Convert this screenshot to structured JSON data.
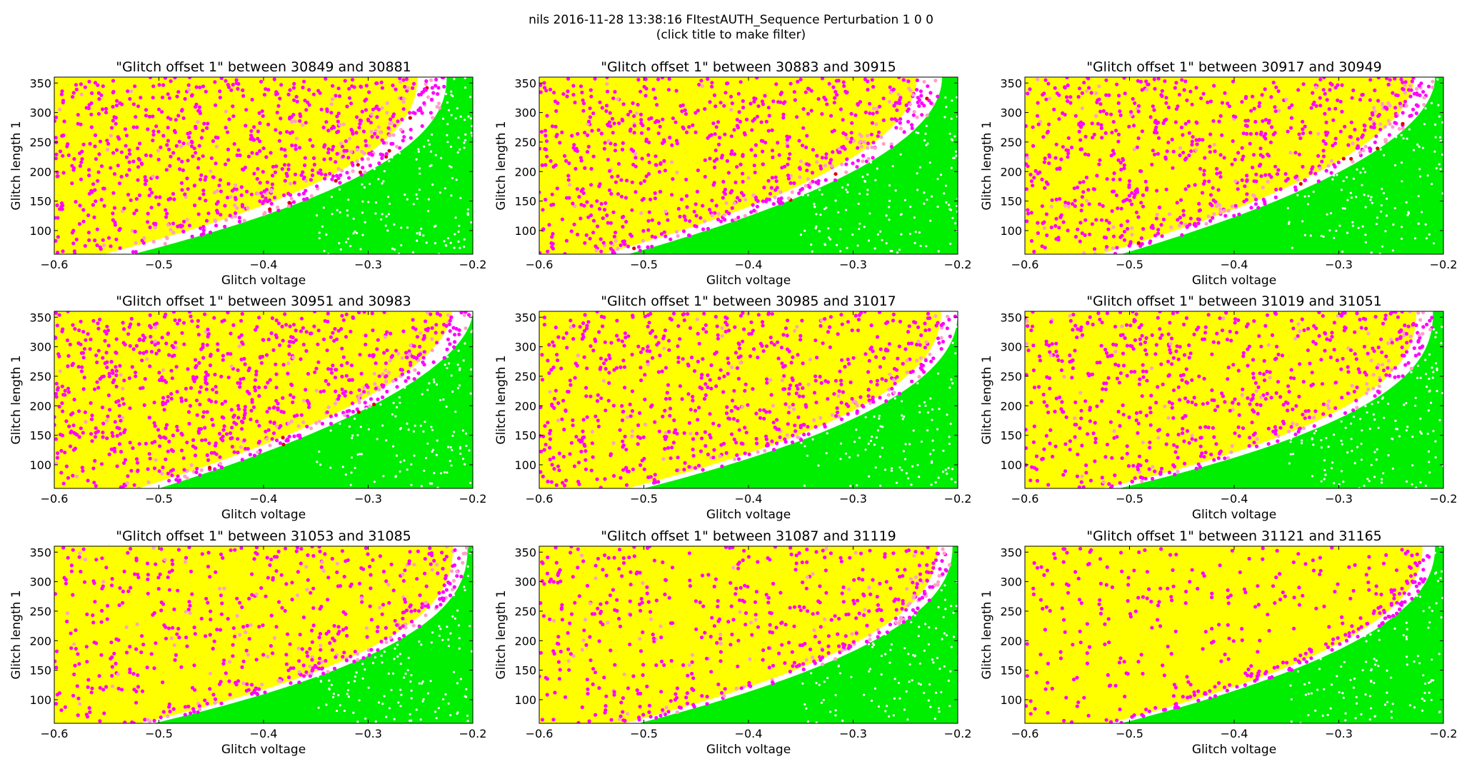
{
  "figure": {
    "title_line1": "nils 2016-11-28 13:38:16 FItestAUTH_Sequence Perturbation 1 0 0",
    "title_line2": "(click title to make filter)"
  },
  "colors": {
    "green": "#00ee00",
    "yellow": "#ffff00",
    "magenta": "#ff00ff",
    "pink": "#ffa0c8",
    "red": "#dd0000",
    "white": "#ffffff"
  },
  "chart_data": [
    {
      "type": "scatter",
      "title": "\"Glitch offset 1\" between 30849 and 30881",
      "xlabel": "Glitch voltage",
      "ylabel": "Glitch length 1",
      "xlim": [
        -0.6,
        -0.2
      ],
      "ylim": [
        60,
        360
      ],
      "xticks": [
        "-0.6",
        "-0.5",
        "-0.4",
        "-0.3",
        "-0.2"
      ],
      "yticks": [
        "100",
        "150",
        "200",
        "250",
        "300",
        "350"
      ],
      "boundary": {
        "a": 0.3,
        "p": 2.2,
        "x0": -0.225,
        "band": 0.07
      },
      "magenta_density": 0.55,
      "pink": true,
      "red": true
    },
    {
      "type": "scatter",
      "title": "\"Glitch offset 1\" between 30883 and 30915",
      "xlabel": "Glitch voltage",
      "ylabel": "Glitch length 1",
      "xlim": [
        -0.6,
        -0.2
      ],
      "ylim": [
        60,
        360
      ],
      "xticks": [
        "-0.6",
        "-0.5",
        "-0.4",
        "-0.3",
        "-0.2"
      ],
      "yticks": [
        "100",
        "150",
        "200",
        "250",
        "300",
        "350"
      ],
      "boundary": {
        "a": 0.3,
        "p": 2.0,
        "x0": -0.215,
        "band": 0.06
      },
      "magenta_density": 0.5,
      "pink": true,
      "red": true
    },
    {
      "type": "scatter",
      "title": "\"Glitch offset 1\" between 30917 and 30949",
      "xlabel": "Glitch voltage",
      "ylabel": "Glitch length 1",
      "xlim": [
        -0.6,
        -0.2
      ],
      "ylim": [
        60,
        360
      ],
      "xticks": [
        "-0.6",
        "-0.5",
        "-0.4",
        "-0.3",
        "-0.2"
      ],
      "yticks": [
        "100",
        "150",
        "200",
        "250",
        "300",
        "350"
      ],
      "boundary": {
        "a": 0.3,
        "p": 1.9,
        "x0": -0.208,
        "band": 0.05
      },
      "magenta_density": 0.48,
      "pink": true,
      "red": true
    },
    {
      "type": "scatter",
      "title": "\"Glitch offset 1\" between 30951 and 30983",
      "xlabel": "Glitch voltage",
      "ylabel": "Glitch length 1",
      "xlim": [
        -0.6,
        -0.2
      ],
      "ylim": [
        60,
        360
      ],
      "xticks": [
        "-0.6",
        "-0.5",
        "-0.4",
        "-0.3",
        "-0.2"
      ],
      "yticks": [
        "100",
        "150",
        "200",
        "250",
        "300",
        "350"
      ],
      "boundary": {
        "a": 0.3,
        "p": 1.8,
        "x0": -0.2,
        "band": 0.05
      },
      "magenta_density": 0.55,
      "pink": true,
      "red": true
    },
    {
      "type": "scatter",
      "title": "\"Glitch offset 1\" between 30985 and 31017",
      "xlabel": "Glitch voltage",
      "ylabel": "Glitch length 1",
      "xlim": [
        -0.6,
        -0.2
      ],
      "ylim": [
        60,
        360
      ],
      "xticks": [
        "-0.6",
        "-0.5",
        "-0.4",
        "-0.3",
        "-0.2"
      ],
      "yticks": [
        "100",
        "150",
        "200",
        "250",
        "300",
        "350"
      ],
      "boundary": {
        "a": 0.3,
        "p": 2.2,
        "x0": -0.2,
        "band": 0.04
      },
      "magenta_density": 0.42,
      "pink": true,
      "red": false
    },
    {
      "type": "scatter",
      "title": "\"Glitch offset 1\" between 31019 and 31051",
      "xlabel": "Glitch voltage",
      "ylabel": "Glitch length 1",
      "xlim": [
        -0.6,
        -0.2
      ],
      "ylim": [
        60,
        360
      ],
      "xticks": [
        "-0.6",
        "-0.5",
        "-0.4",
        "-0.3",
        "-0.2"
      ],
      "yticks": [
        "100",
        "150",
        "200",
        "250",
        "300",
        "350"
      ],
      "boundary": {
        "a": 0.3,
        "p": 2.4,
        "x0": -0.21,
        "band": 0.04
      },
      "magenta_density": 0.4,
      "pink": true,
      "red": false
    },
    {
      "type": "scatter",
      "title": "\"Glitch offset 1\" between 31053 and 31085",
      "xlabel": "Glitch voltage",
      "ylabel": "Glitch length 1",
      "xlim": [
        -0.6,
        -0.2
      ],
      "ylim": [
        60,
        360
      ],
      "xticks": [
        "-0.6",
        "-0.5",
        "-0.4",
        "-0.3",
        "-0.2"
      ],
      "yticks": [
        "100",
        "150",
        "200",
        "250",
        "300",
        "350"
      ],
      "boundary": {
        "a": 0.3,
        "p": 2.4,
        "x0": -0.205,
        "band": 0.035
      },
      "magenta_density": 0.3,
      "pink": true,
      "red": false
    },
    {
      "type": "scatter",
      "title": "\"Glitch offset 1\" between 31087 and 31119",
      "xlabel": "Glitch voltage",
      "ylabel": "Glitch length 1",
      "xlim": [
        -0.6,
        -0.2
      ],
      "ylim": [
        60,
        360
      ],
      "xticks": [
        "-0.6",
        "-0.5",
        "-0.4",
        "-0.3",
        "-0.2"
      ],
      "yticks": [
        "100",
        "150",
        "200",
        "250",
        "300",
        "350"
      ],
      "boundary": {
        "a": 0.3,
        "p": 2.2,
        "x0": -0.205,
        "band": 0.035
      },
      "magenta_density": 0.28,
      "pink": true,
      "red": false
    },
    {
      "type": "scatter",
      "title": "\"Glitch offset 1\" between 31121 and 31165",
      "xlabel": "Glitch voltage",
      "ylabel": "Glitch length 1",
      "xlim": [
        -0.6,
        -0.2
      ],
      "ylim": [
        60,
        360
      ],
      "xticks": [
        "-0.6",
        "-0.5",
        "-0.4",
        "-0.3",
        "-0.2"
      ],
      "yticks": [
        "100",
        "150",
        "200",
        "250",
        "300",
        "350"
      ],
      "boundary": {
        "a": 0.3,
        "p": 2.2,
        "x0": -0.208,
        "band": 0.03
      },
      "magenta_density": 0.2,
      "pink": false,
      "red": false
    }
  ]
}
